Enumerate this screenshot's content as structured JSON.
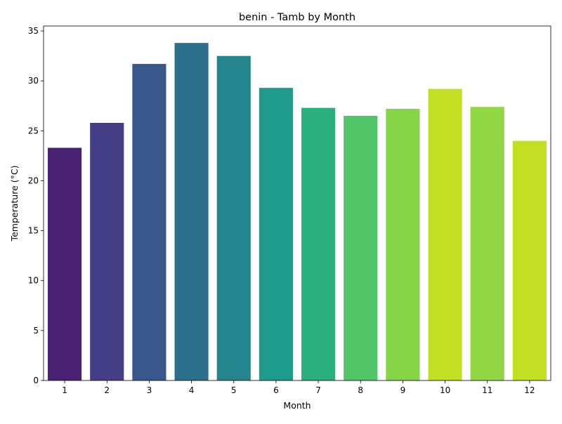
{
  "chart_data": {
    "type": "bar",
    "title": "benin - Tamb by Month",
    "xlabel": "Month",
    "ylabel": "Temperature (°C)",
    "categories": [
      "1",
      "2",
      "3",
      "4",
      "5",
      "6",
      "7",
      "8",
      "9",
      "10",
      "11",
      "12"
    ],
    "values": [
      23.3,
      25.8,
      31.7,
      33.8,
      32.5,
      29.3,
      27.3,
      26.5,
      27.2,
      29.2,
      27.4,
      24.0
    ],
    "ylim": [
      0,
      35.5
    ],
    "yticks": [
      0,
      5,
      10,
      15,
      20,
      25,
      30,
      35
    ],
    "grid": false,
    "legend": "none",
    "colors": [
      "#482173",
      "#433e85",
      "#38588c",
      "#2d708e",
      "#25858e",
      "#1e9b8a",
      "#2ab07f",
      "#52c569",
      "#86d549",
      "#c2df23",
      "#90d743",
      "#c2df23"
    ]
  }
}
